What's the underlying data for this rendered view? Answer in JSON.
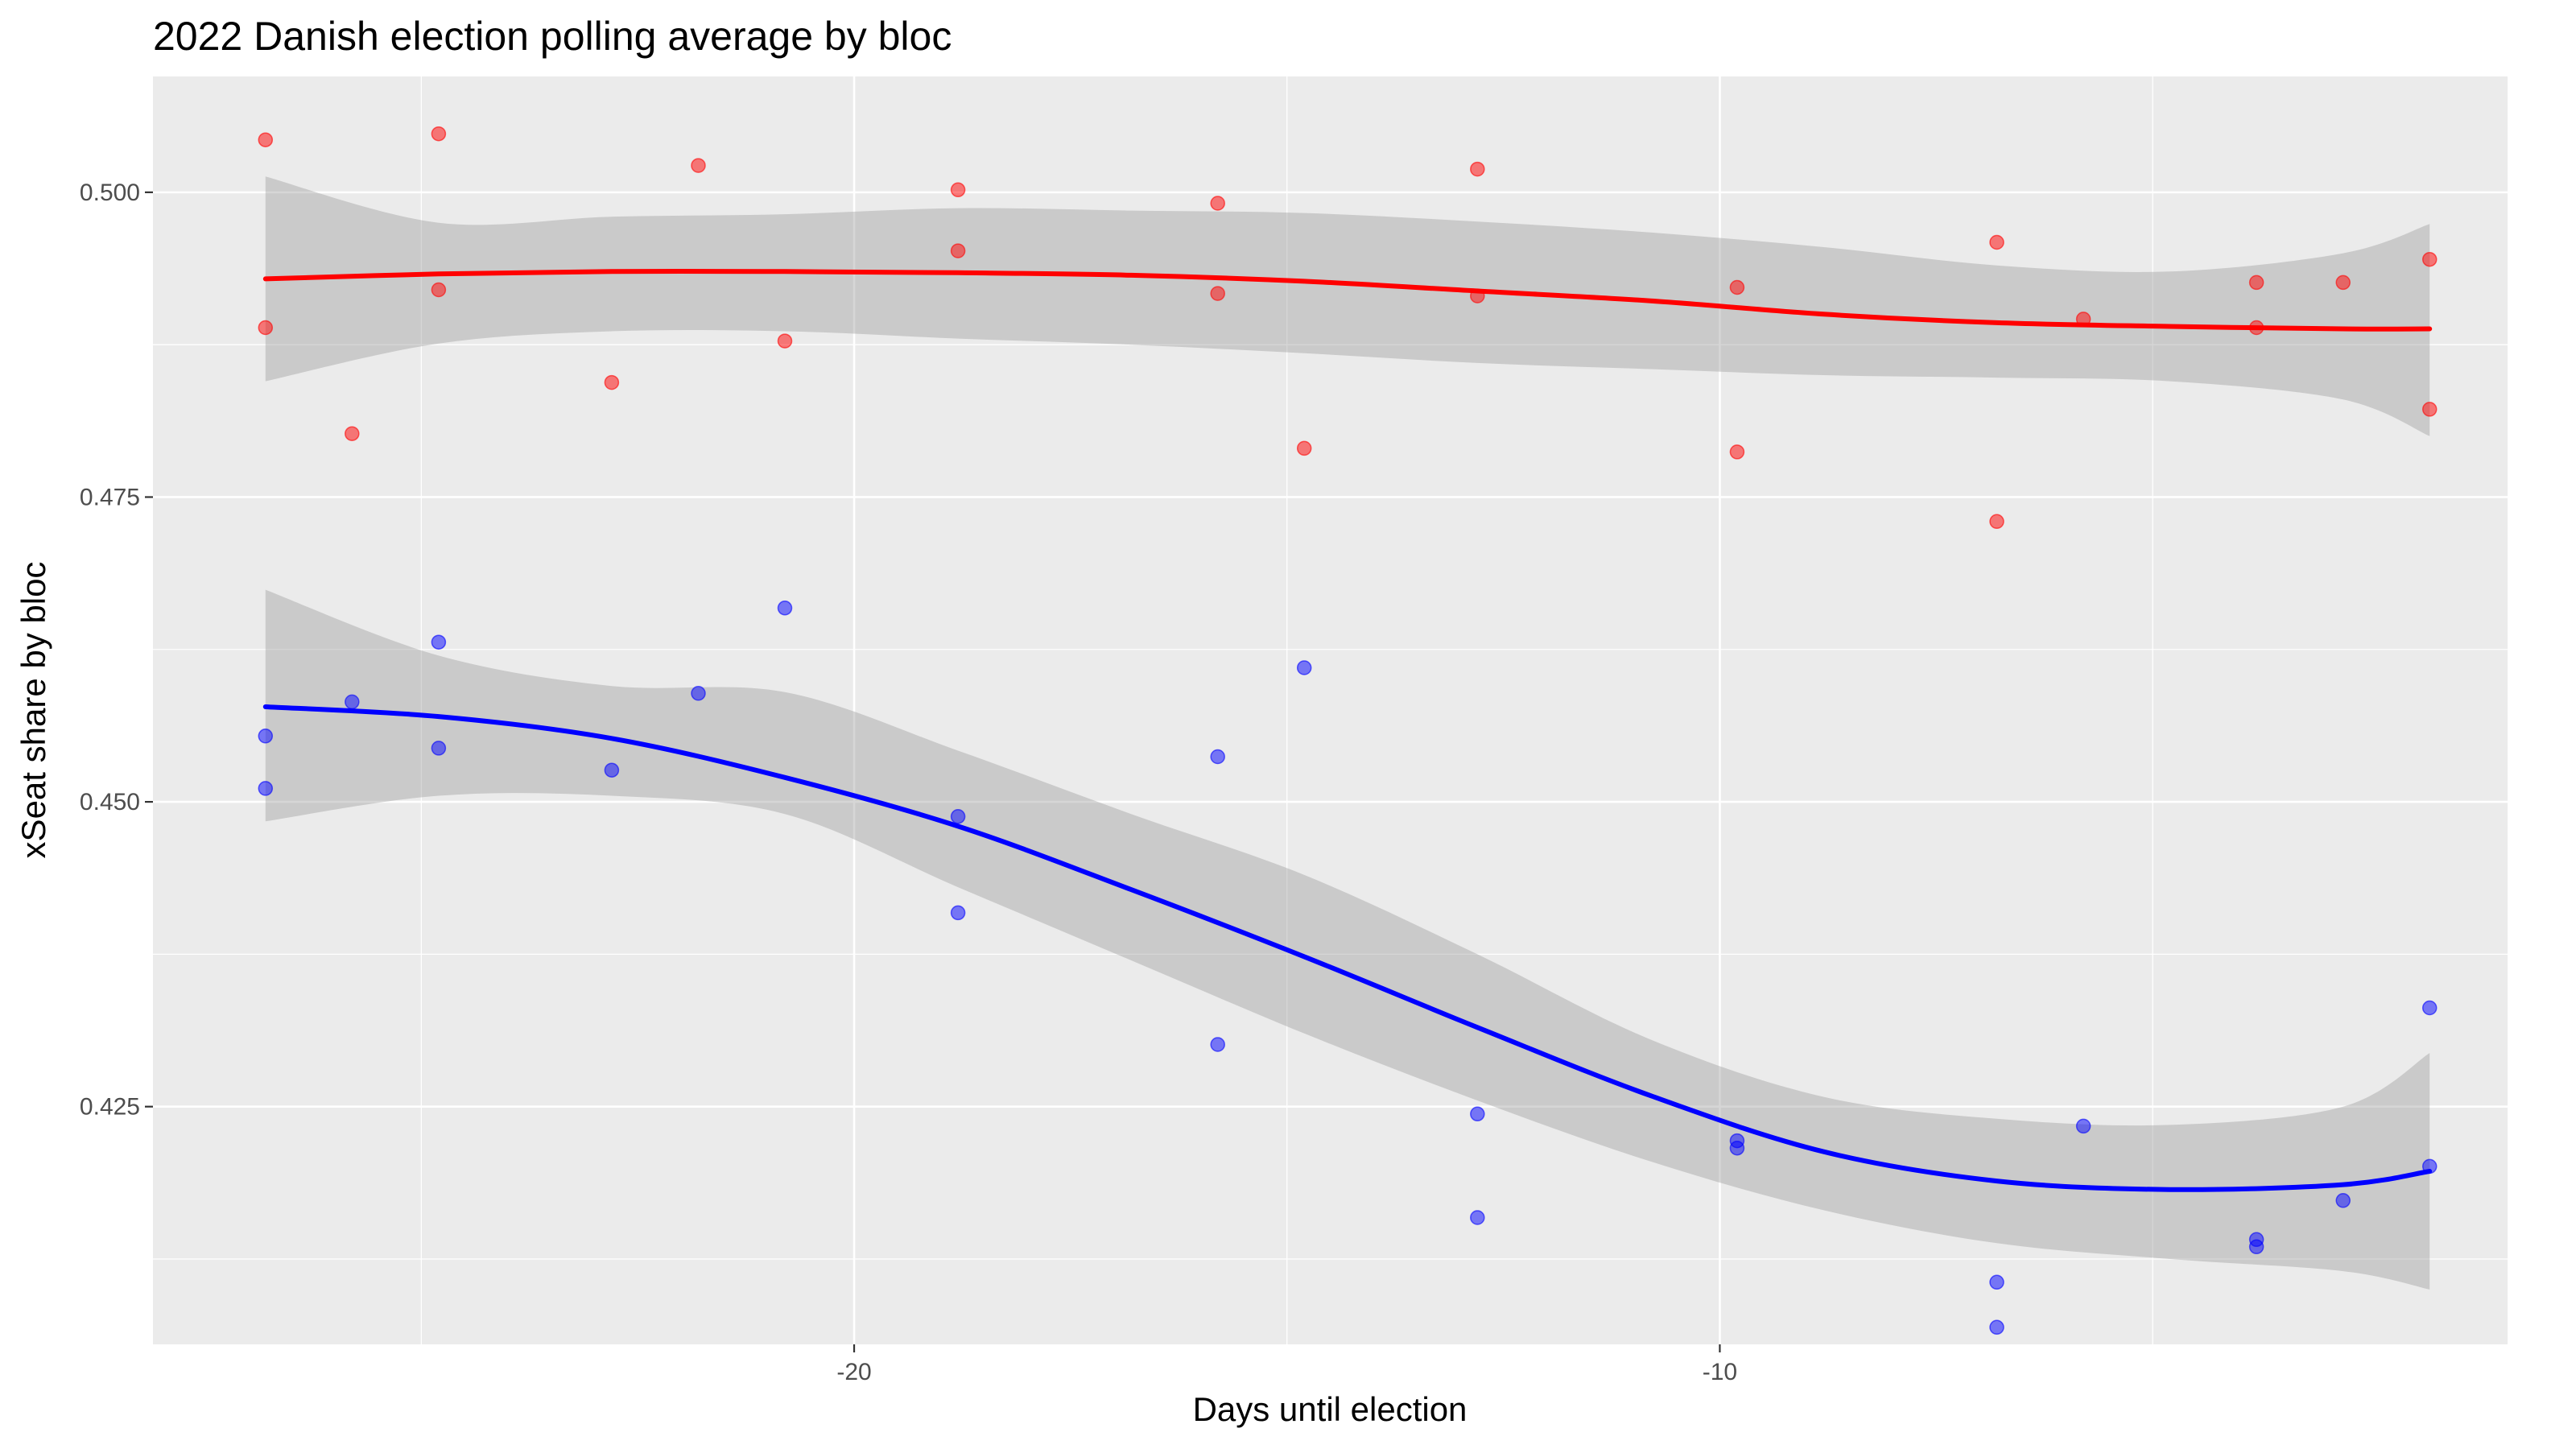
{
  "chart_data": {
    "type": "scatter",
    "title": "2022 Danish election polling average by bloc",
    "xlabel": "Days until election",
    "ylabel": "xSeat share by bloc",
    "xlim": [
      -28.1,
      -0.9
    ],
    "ylim": [
      0.4055,
      0.5095
    ],
    "x_ticks": [
      -20,
      -10
    ],
    "x_tick_labels": [
      "-20",
      "-10"
    ],
    "y_ticks": [
      0.425,
      0.45,
      0.475,
      0.5
    ],
    "y_tick_labels": [
      "0.425",
      "0.450",
      "0.475",
      "0.500"
    ],
    "grid": true,
    "legend": "none",
    "colors": {
      "panel": "#ebebeb",
      "grid": "#ffffff",
      "band": "#999999",
      "red_series": "#ff0000",
      "blue_series": "#0000ff"
    },
    "series": [
      {
        "color": "#ff0000",
        "points": [
          [
            -26.8,
            0.5043
          ],
          [
            -26.8,
            0.4889
          ],
          [
            -25.8,
            0.4802
          ],
          [
            -24.8,
            0.5048
          ],
          [
            -24.8,
            0.492
          ],
          [
            -22.8,
            0.4844
          ],
          [
            -21.8,
            0.5022
          ],
          [
            -20.8,
            0.4878
          ],
          [
            -18.8,
            0.5002
          ],
          [
            -18.8,
            0.4952
          ],
          [
            -15.8,
            0.4991
          ],
          [
            -15.8,
            0.4917
          ],
          [
            -14.8,
            0.479
          ],
          [
            -12.8,
            0.5019
          ],
          [
            -12.8,
            0.4915
          ],
          [
            -9.8,
            0.4922
          ],
          [
            -9.8,
            0.4787
          ],
          [
            -6.8,
            0.4959
          ],
          [
            -6.8,
            0.473
          ],
          [
            -5.8,
            0.4896
          ],
          [
            -3.8,
            0.4926
          ],
          [
            -3.8,
            0.4889
          ],
          [
            -2.8,
            0.4926
          ],
          [
            -1.8,
            0.4945
          ],
          [
            -1.8,
            0.4822
          ]
        ],
        "smooth": [
          [
            -26.8,
            0.4929
          ],
          [
            -24.8,
            0.4933
          ],
          [
            -22.8,
            0.4935
          ],
          [
            -20.8,
            0.4935
          ],
          [
            -18.8,
            0.4934
          ],
          [
            -16.8,
            0.4932
          ],
          [
            -14.8,
            0.4927
          ],
          [
            -12.8,
            0.4919
          ],
          [
            -10.8,
            0.4911
          ],
          [
            -8.8,
            0.49
          ],
          [
            -6.8,
            0.4893
          ],
          [
            -4.8,
            0.489
          ],
          [
            -2.8,
            0.4888
          ],
          [
            -1.8,
            0.4888
          ]
        ],
        "band_upper": [
          [
            -26.8,
            0.5013
          ],
          [
            -24.8,
            0.4975
          ],
          [
            -22.8,
            0.498
          ],
          [
            -20.8,
            0.4982
          ],
          [
            -18.8,
            0.4987
          ],
          [
            -16.8,
            0.4985
          ],
          [
            -14.8,
            0.4983
          ],
          [
            -12.8,
            0.4976
          ],
          [
            -10.8,
            0.4967
          ],
          [
            -8.8,
            0.4955
          ],
          [
            -6.8,
            0.494
          ],
          [
            -4.8,
            0.4935
          ],
          [
            -2.8,
            0.495
          ],
          [
            -1.8,
            0.4974
          ]
        ],
        "band_lower": [
          [
            -26.8,
            0.4845
          ],
          [
            -24.8,
            0.4876
          ],
          [
            -22.8,
            0.4886
          ],
          [
            -20.8,
            0.4886
          ],
          [
            -18.8,
            0.488
          ],
          [
            -16.8,
            0.4875
          ],
          [
            -14.8,
            0.4868
          ],
          [
            -12.8,
            0.486
          ],
          [
            -10.8,
            0.4855
          ],
          [
            -8.8,
            0.485
          ],
          [
            -6.8,
            0.4848
          ],
          [
            -4.8,
            0.4845
          ],
          [
            -2.8,
            0.483
          ],
          [
            -1.8,
            0.48
          ]
        ]
      },
      {
        "color": "#0000ff",
        "points": [
          [
            -26.8,
            0.4554
          ],
          [
            -26.8,
            0.4511
          ],
          [
            -25.8,
            0.4582
          ],
          [
            -24.8,
            0.4631
          ],
          [
            -24.8,
            0.4544
          ],
          [
            -22.8,
            0.4526
          ],
          [
            -21.8,
            0.4589
          ],
          [
            -20.8,
            0.4659
          ],
          [
            -18.8,
            0.4488
          ],
          [
            -18.8,
            0.4409
          ],
          [
            -15.8,
            0.4537
          ],
          [
            -15.8,
            0.4301
          ],
          [
            -14.8,
            0.461
          ],
          [
            -12.8,
            0.4244
          ],
          [
            -12.8,
            0.4159
          ],
          [
            -9.8,
            0.4222
          ],
          [
            -9.8,
            0.4216
          ],
          [
            -6.8,
            0.4106
          ],
          [
            -6.8,
            0.4069
          ],
          [
            -5.8,
            0.4234
          ],
          [
            -3.8,
            0.4141
          ],
          [
            -3.8,
            0.4135
          ],
          [
            -2.8,
            0.4173
          ],
          [
            -1.8,
            0.4331
          ],
          [
            -1.8,
            0.4201
          ]
        ],
        "smooth": [
          [
            -26.8,
            0.4578
          ],
          [
            -24.8,
            0.457
          ],
          [
            -22.8,
            0.4552
          ],
          [
            -20.8,
            0.452
          ],
          [
            -18.8,
            0.448
          ],
          [
            -16.8,
            0.4428
          ],
          [
            -14.8,
            0.4373
          ],
          [
            -12.8,
            0.4315
          ],
          [
            -10.8,
            0.4259
          ],
          [
            -8.8,
            0.4213
          ],
          [
            -6.8,
            0.4189
          ],
          [
            -4.8,
            0.4182
          ],
          [
            -2.8,
            0.4186
          ],
          [
            -1.8,
            0.4197
          ]
        ],
        "band_upper": [
          [
            -26.8,
            0.4674
          ],
          [
            -24.8,
            0.462
          ],
          [
            -22.8,
            0.4595
          ],
          [
            -20.8,
            0.459
          ],
          [
            -18.8,
            0.4542
          ],
          [
            -16.8,
            0.449
          ],
          [
            -14.8,
            0.444
          ],
          [
            -12.8,
            0.4375
          ],
          [
            -10.8,
            0.4305
          ],
          [
            -8.8,
            0.4258
          ],
          [
            -6.8,
            0.424
          ],
          [
            -4.8,
            0.4235
          ],
          [
            -2.8,
            0.425
          ],
          [
            -1.8,
            0.4294
          ]
        ],
        "band_lower": [
          [
            -26.8,
            0.4484
          ],
          [
            -24.8,
            0.4505
          ],
          [
            -22.8,
            0.4505
          ],
          [
            -20.8,
            0.449
          ],
          [
            -18.8,
            0.443
          ],
          [
            -16.8,
            0.437
          ],
          [
            -14.8,
            0.431
          ],
          [
            -12.8,
            0.4255
          ],
          [
            -10.8,
            0.4205
          ],
          [
            -8.8,
            0.4165
          ],
          [
            -6.8,
            0.4138
          ],
          [
            -4.8,
            0.4125
          ],
          [
            -2.8,
            0.4115
          ],
          [
            -1.8,
            0.41
          ]
        ]
      }
    ]
  }
}
